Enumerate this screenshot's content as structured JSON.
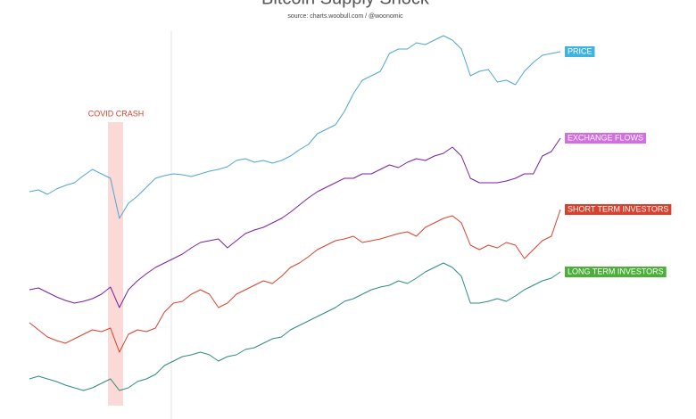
{
  "chart_data": {
    "type": "line",
    "title": "Bitcoin Supply Shock",
    "subtitle": "source: charts.woobull.com / @woonomic",
    "annotation": "COVID CRASH",
    "ylim": [
      0,
      470
    ],
    "series": [
      {
        "name": "PRICE",
        "color": "#4fa6d3",
        "label_color": "#3fb3e0",
        "values": [
          255,
          257,
          252,
          258,
          262,
          265,
          273,
          280,
          275,
          270,
          225,
          242,
          250,
          260,
          270,
          273,
          275,
          274,
          272,
          275,
          278,
          280,
          283,
          290,
          292,
          288,
          290,
          287,
          290,
          295,
          302,
          308,
          320,
          325,
          330,
          345,
          365,
          380,
          385,
          390,
          410,
          415,
          415,
          422,
          420,
          425,
          430,
          425,
          415,
          385,
          390,
          392,
          378,
          380,
          375,
          390,
          400,
          408,
          410,
          412
        ]
      },
      {
        "name": "EXCHANGE FLOWS",
        "color": "#7b1fa2",
        "label_color": "#d36ee0",
        "values": [
          145,
          147,
          142,
          137,
          133,
          130,
          132,
          135,
          140,
          148,
          125,
          145,
          155,
          163,
          170,
          175,
          180,
          185,
          192,
          198,
          200,
          202,
          192,
          200,
          208,
          212,
          215,
          220,
          225,
          232,
          240,
          248,
          255,
          260,
          265,
          270,
          270,
          275,
          275,
          280,
          285,
          282,
          288,
          292,
          290,
          295,
          298,
          305,
          295,
          270,
          265,
          265,
          265,
          267,
          270,
          275,
          275,
          295,
          300,
          315
        ]
      },
      {
        "name": "SHORT TERM INVESTORS",
        "color": "#d9412e",
        "label_color": "#d9412e",
        "values": [
          108,
          100,
          92,
          88,
          85,
          90,
          95,
          100,
          98,
          102,
          75,
          95,
          100,
          98,
          102,
          120,
          130,
          132,
          140,
          145,
          140,
          125,
          130,
          140,
          145,
          150,
          155,
          152,
          160,
          170,
          175,
          182,
          190,
          195,
          200,
          202,
          205,
          198,
          200,
          202,
          205,
          208,
          210,
          205,
          215,
          220,
          225,
          228,
          220,
          195,
          190,
          195,
          192,
          198,
          195,
          180,
          190,
          200,
          205,
          235
        ]
      },
      {
        "name": "LONG TERM INVESTORS",
        "color": "#2e8b83",
        "label_color": "#4caf3a",
        "values": [
          45,
          48,
          45,
          42,
          38,
          35,
          32,
          35,
          40,
          45,
          32,
          35,
          42,
          45,
          50,
          60,
          65,
          70,
          72,
          75,
          72,
          65,
          70,
          72,
          78,
          80,
          85,
          90,
          92,
          100,
          105,
          110,
          115,
          120,
          125,
          132,
          135,
          140,
          145,
          148,
          150,
          155,
          152,
          158,
          165,
          170,
          175,
          170,
          160,
          130,
          130,
          132,
          135,
          132,
          138,
          145,
          150,
          155,
          158,
          165
        ]
      }
    ]
  }
}
